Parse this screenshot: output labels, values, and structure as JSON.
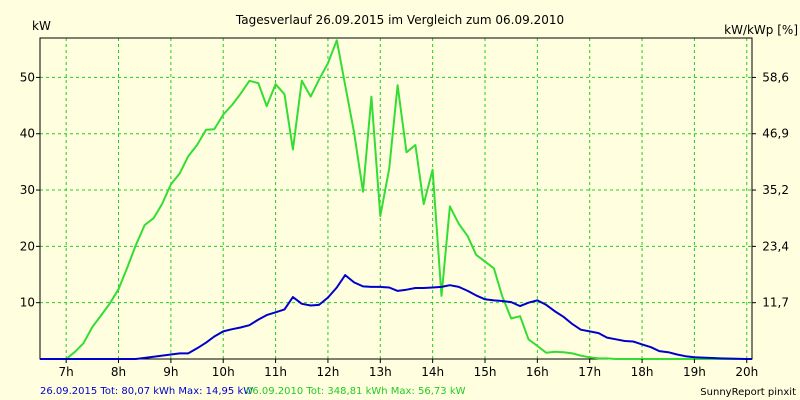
{
  "chart_data": {
    "type": "line",
    "title": "Tagesverlauf 26.09.2015 im Vergleich zum 06.09.2010",
    "ylabel_left": "kW",
    "ylabel_right": "kW/kWp [%]",
    "x_unit": "hour",
    "xlim": [
      6.5,
      20.1
    ],
    "ylim": [
      0,
      57
    ],
    "x_ticks": [
      7,
      8,
      9,
      10,
      11,
      12,
      13,
      14,
      15,
      16,
      17,
      18,
      19,
      20
    ],
    "x_tick_labels": [
      "7h",
      "8h",
      "9h",
      "10h",
      "11h",
      "12h",
      "13h",
      "14h",
      "15h",
      "16h",
      "17h",
      "18h",
      "19h",
      "20h"
    ],
    "y_ticks_left": [
      10,
      20,
      30,
      40,
      50
    ],
    "y_tick_labels_left": [
      "10",
      "20",
      "30",
      "40",
      "50"
    ],
    "y_ticks_right_at": [
      10,
      20,
      30,
      40,
      50
    ],
    "y_tick_labels_right": [
      "11,7",
      "23,4",
      "35,2",
      "46,9",
      "58,6"
    ],
    "grid": true,
    "series": [
      {
        "name": "26.09.2015",
        "color": "#0000cc",
        "x": [
          6.5,
          7.0,
          7.5,
          8.0,
          8.33,
          8.67,
          9.0,
          9.17,
          9.33,
          9.5,
          9.67,
          9.83,
          10.0,
          10.17,
          10.33,
          10.5,
          10.67,
          10.83,
          11.0,
          11.17,
          11.33,
          11.5,
          11.67,
          11.83,
          12.0,
          12.17,
          12.33,
          12.5,
          12.67,
          12.83,
          13.0,
          13.17,
          13.33,
          13.5,
          13.67,
          13.83,
          14.0,
          14.17,
          14.33,
          14.5,
          14.67,
          14.83,
          15.0,
          15.17,
          15.33,
          15.5,
          15.67,
          15.83,
          16.0,
          16.17,
          16.33,
          16.5,
          16.67,
          16.83,
          17.0,
          17.17,
          17.33,
          17.5,
          17.67,
          17.83,
          18.0,
          18.17,
          18.33,
          18.5,
          18.67,
          18.83,
          19.0,
          19.5,
          20.0,
          20.1
        ],
        "values": [
          0,
          0,
          0,
          0,
          0,
          0.4,
          0.8,
          1.0,
          1.0,
          1.9,
          2.9,
          4.0,
          4.9,
          5.3,
          5.6,
          6.0,
          7.0,
          7.8,
          8.3,
          8.8,
          11.0,
          9.8,
          9.5,
          9.6,
          10.9,
          12.7,
          14.9,
          13.6,
          12.9,
          12.8,
          12.8,
          12.7,
          12.1,
          12.3,
          12.6,
          12.6,
          12.7,
          12.8,
          13.1,
          12.8,
          12.1,
          11.3,
          10.6,
          10.4,
          10.3,
          10.1,
          9.4,
          10.0,
          10.4,
          9.6,
          8.5,
          7.5,
          6.2,
          5.2,
          4.9,
          4.6,
          3.8,
          3.5,
          3.2,
          3.1,
          2.6,
          2.1,
          1.4,
          1.2,
          0.8,
          0.5,
          0.3,
          0.1,
          0,
          0
        ]
      },
      {
        "name": "06.09.2010",
        "color": "#33dd33",
        "x": [
          6.5,
          7.0,
          7.17,
          7.33,
          7.5,
          7.67,
          7.83,
          8.0,
          8.17,
          8.33,
          8.5,
          8.67,
          8.83,
          9.0,
          9.17,
          9.33,
          9.5,
          9.67,
          9.83,
          10.0,
          10.17,
          10.33,
          10.5,
          10.67,
          10.83,
          11.0,
          11.17,
          11.33,
          11.5,
          11.67,
          11.83,
          12.0,
          12.17,
          12.33,
          12.5,
          12.67,
          12.83,
          13.0,
          13.17,
          13.33,
          13.5,
          13.67,
          13.83,
          14.0,
          14.17,
          14.33,
          14.5,
          14.67,
          14.83,
          15.0,
          15.17,
          15.33,
          15.5,
          15.67,
          15.83,
          16.0,
          16.17,
          16.33,
          16.5,
          16.67,
          16.83,
          17.0,
          17.17,
          17.33,
          17.5,
          17.67,
          17.83,
          18.0,
          18.17,
          18.33,
          18.5,
          18.83,
          19.0,
          19.17,
          19.33,
          19.5,
          19.67,
          20.0,
          20.1
        ],
        "values": [
          0,
          0,
          1.3,
          2.8,
          5.7,
          7.8,
          9.8,
          12.4,
          16.3,
          20.2,
          23.8,
          25.0,
          27.5,
          31.0,
          33.0,
          36.0,
          38.0,
          40.7,
          40.8,
          43.4,
          45.1,
          47.1,
          49.4,
          49.0,
          44.9,
          48.8,
          47.0,
          37.2,
          49.4,
          46.6,
          49.6,
          52.5,
          56.6,
          48.6,
          40.2,
          29.7,
          46.6,
          25.4,
          33.8,
          48.6,
          36.7,
          38.0,
          27.5,
          33.6,
          11.2,
          27.1,
          24.0,
          21.8,
          18.5,
          17.3,
          16.1,
          11.1,
          7.2,
          7.6,
          3.5,
          2.3,
          1.1,
          1.3,
          1.2,
          1.0,
          0.6,
          0.3,
          0.1,
          0.1,
          0,
          0,
          0,
          0,
          0,
          0,
          0,
          0,
          0,
          0,
          0,
          0,
          0,
          0,
          0
        ]
      }
    ],
    "footer": {
      "series1_text": "26.09.2015 Tot: 80,07 kWh Max: 14,95 kW",
      "series2_text": "06.09.2010 Tot: 348,81 kWh Max: 56,73 kW",
      "credit": "SunnyReport pinxit"
    },
    "colors": {
      "background": "#ffffe0",
      "grid": "#22cc22",
      "frame": "#000000"
    }
  }
}
